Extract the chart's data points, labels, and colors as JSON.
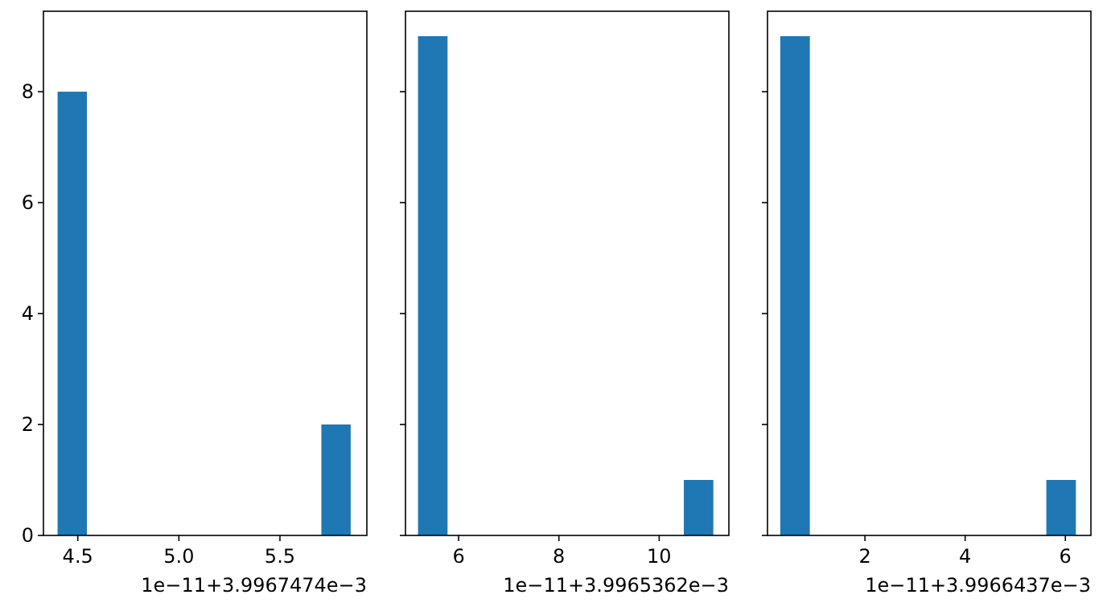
{
  "chart_data": [
    {
      "type": "histogram",
      "xlabel": "1e−11+3.9967474e−3",
      "bins": [
        4.4,
        4.545,
        4.69,
        4.835,
        4.98,
        5.125,
        5.27,
        5.415,
        5.56,
        5.705,
        5.85
      ],
      "values": [
        8,
        0,
        0,
        0,
        0,
        0,
        0,
        0,
        0,
        2
      ],
      "color": "#1f77b4",
      "xlim": [
        4.33,
        5.93
      ],
      "xticks": [
        {
          "value": 4.5,
          "label": "4.5"
        },
        {
          "value": 5,
          "label": "5.0"
        },
        {
          "value": 5.5,
          "label": "5.5"
        }
      ],
      "ylim": [
        0,
        9.45
      ],
      "yticks": [
        0,
        2,
        4,
        6,
        8
      ]
    },
    {
      "type": "histogram",
      "xlabel": "1e−11+3.9965362e−3",
      "bins": [
        5.19,
        5.779,
        6.368,
        6.957,
        7.546,
        8.135,
        8.724,
        9.313,
        9.902,
        10.491,
        11.08
      ],
      "values": [
        9,
        0,
        0,
        0,
        0,
        0,
        0,
        0,
        0,
        1
      ],
      "color": "#1f77b4",
      "xlim": [
        4.94,
        11.39
      ],
      "xticks": [
        6,
        8,
        10
      ],
      "ylim": [
        0,
        9.45
      ],
      "yticks": [
        0,
        2,
        4,
        6,
        8
      ],
      "tick_labels": "x"
    },
    {
      "type": "histogram",
      "xlabel": "1e−11+3.9966437e−3",
      "bins": [
        0.31,
        0.9,
        1.49,
        2.08,
        2.67,
        3.26,
        3.85,
        4.44,
        5.03,
        5.62,
        6.21
      ],
      "values": [
        9,
        0,
        0,
        0,
        0,
        0,
        0,
        0,
        0,
        1
      ],
      "color": "#1f77b4",
      "xlim": [
        0.055,
        6.51
      ],
      "xticks": [
        2,
        4,
        6
      ],
      "ylim": [
        0,
        9.45
      ],
      "yticks": [
        0,
        2,
        4,
        6,
        8
      ],
      "tick_labels": "x"
    }
  ]
}
